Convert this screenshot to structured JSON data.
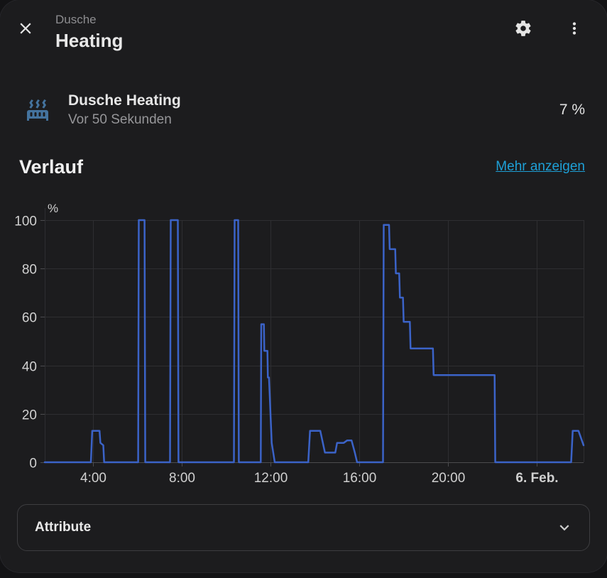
{
  "header": {
    "subtitle": "Dusche",
    "title": "Heating",
    "close_icon": "close-icon",
    "settings_icon": "gear-icon",
    "menu_icon": "dots-vertical-icon"
  },
  "entity": {
    "name": "Dusche Heating",
    "last_changed": "Vor 50 Sekunden",
    "state": "7 %",
    "icon": "radiator-icon",
    "icon_color": "#44739e"
  },
  "history": {
    "title": "Verlauf",
    "show_more_label": "Mehr anzeigen"
  },
  "attributes_panel": {
    "label": "Attribute",
    "expander_icon": "chevron-down-icon",
    "expanded": false
  },
  "colors": {
    "dialog_background": "#1c1c1e",
    "backdrop": "#131315",
    "primary_text": "#e8e8e8",
    "secondary_text": "#969699",
    "link": "#1ea0d7",
    "line": "#3b63c8",
    "grid": "#2e2e31",
    "axis": "#4b4b4e",
    "tick_label": "#d0d0d0",
    "panel_border": "#3d3d40"
  },
  "chart_data": {
    "type": "line",
    "line_style": "step",
    "title": "Verlauf",
    "xlabel": "",
    "ylabel": "%",
    "y_unit": "%",
    "ylim": [
      0,
      100
    ],
    "y_ticks": [
      0,
      20,
      40,
      60,
      80,
      100
    ],
    "x_range": [
      1.82,
      26.11
    ],
    "x_ticks": [
      {
        "t": 4,
        "label": "4:00",
        "bold": false
      },
      {
        "t": 8,
        "label": "8:00",
        "bold": false
      },
      {
        "t": 12,
        "label": "12:00",
        "bold": false
      },
      {
        "t": 16,
        "label": "16:00",
        "bold": false
      },
      {
        "t": 20,
        "label": "20:00",
        "bold": false
      },
      {
        "t": 24,
        "label": "6. Feb.",
        "bold": true
      }
    ],
    "grid": true,
    "legend": false,
    "series": [
      {
        "name": "Dusche Heating",
        "unit": "%",
        "color": "#3b63c8",
        "points": [
          [
            1.82,
            0
          ],
          [
            3.9,
            0
          ],
          [
            3.96,
            13
          ],
          [
            4.29,
            13
          ],
          [
            4.33,
            8
          ],
          [
            4.46,
            7
          ],
          [
            4.5,
            0
          ],
          [
            6.03,
            0
          ],
          [
            6.06,
            100
          ],
          [
            6.32,
            100
          ],
          [
            6.35,
            0
          ],
          [
            7.47,
            0
          ],
          [
            7.5,
            100
          ],
          [
            7.82,
            100
          ],
          [
            7.85,
            0
          ],
          [
            10.35,
            0
          ],
          [
            10.38,
            100
          ],
          [
            10.54,
            100
          ],
          [
            10.57,
            0
          ],
          [
            11.56,
            0
          ],
          [
            11.58,
            57
          ],
          [
            11.7,
            57
          ],
          [
            11.72,
            46
          ],
          [
            11.86,
            46
          ],
          [
            11.88,
            35
          ],
          [
            11.93,
            35
          ],
          [
            12.05,
            8
          ],
          [
            12.19,
            0
          ],
          [
            13.7,
            0
          ],
          [
            13.78,
            13
          ],
          [
            14.24,
            13
          ],
          [
            14.45,
            4
          ],
          [
            14.92,
            4
          ],
          [
            15.0,
            8
          ],
          [
            15.3,
            8
          ],
          [
            15.45,
            9
          ],
          [
            15.65,
            9
          ],
          [
            15.8,
            4
          ],
          [
            15.9,
            0
          ],
          [
            17.07,
            0
          ],
          [
            17.1,
            98
          ],
          [
            17.34,
            98
          ],
          [
            17.37,
            88
          ],
          [
            17.62,
            88
          ],
          [
            17.65,
            78
          ],
          [
            17.8,
            78
          ],
          [
            17.83,
            68
          ],
          [
            17.97,
            68
          ],
          [
            18.0,
            58
          ],
          [
            18.28,
            58
          ],
          [
            18.31,
            47
          ],
          [
            19.32,
            47
          ],
          [
            19.35,
            36
          ],
          [
            22.1,
            36
          ],
          [
            22.13,
            0
          ],
          [
            25.55,
            0
          ],
          [
            25.62,
            13
          ],
          [
            25.88,
            13
          ],
          [
            26.11,
            7
          ]
        ]
      }
    ]
  }
}
